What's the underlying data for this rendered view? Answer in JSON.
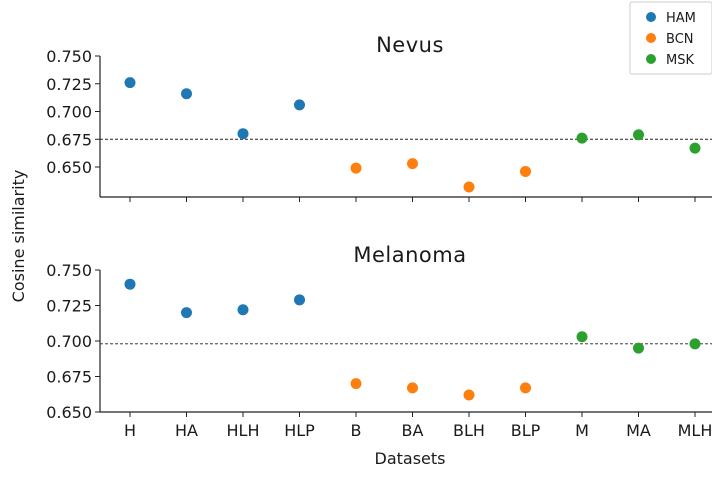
{
  "chart_data": {
    "type": "scatter",
    "xlabel": "Datasets",
    "ylabel": "Cosine similarity",
    "categories": [
      "H",
      "HA",
      "HLH",
      "HLP",
      "B",
      "BA",
      "BLH",
      "BLP",
      "M",
      "MA",
      "MLH"
    ],
    "legend": {
      "position": "top-right",
      "entries": [
        {
          "name": "HAM",
          "color": "#1f77b4"
        },
        {
          "name": "BCN",
          "color": "#ff7f0e"
        },
        {
          "name": "MSK",
          "color": "#2ca02c"
        }
      ]
    },
    "panels": [
      {
        "title": "Nevus",
        "ylim": [
          0.63,
          0.75
        ],
        "yticks": [
          0.65,
          0.675,
          0.7,
          0.725,
          0.75
        ],
        "ytick_labels": [
          "0.650",
          "0.675",
          "0.700",
          "0.725",
          "0.750"
        ],
        "reference_line": 0.675,
        "series": [
          {
            "name": "HAM",
            "color": "#1f77b4",
            "categories": [
              "H",
              "HA",
              "HLH",
              "HLP"
            ],
            "values": [
              0.726,
              0.716,
              0.68,
              0.706
            ]
          },
          {
            "name": "BCN",
            "color": "#ff7f0e",
            "categories": [
              "B",
              "BA",
              "BLH",
              "BLP"
            ],
            "values": [
              0.649,
              0.653,
              0.632,
              0.646
            ]
          },
          {
            "name": "MSK",
            "color": "#2ca02c",
            "categories": [
              "M",
              "MA",
              "MLH"
            ],
            "values": [
              0.676,
              0.679,
              0.667
            ]
          }
        ]
      },
      {
        "title": "Melanoma",
        "ylim": [
          0.65,
          0.75
        ],
        "yticks": [
          0.65,
          0.675,
          0.7,
          0.725,
          0.75
        ],
        "ytick_labels": [
          "0.650",
          "0.675",
          "0.700",
          "0.725",
          "0.750"
        ],
        "reference_line": 0.698,
        "series": [
          {
            "name": "HAM",
            "color": "#1f77b4",
            "categories": [
              "H",
              "HA",
              "HLH",
              "HLP"
            ],
            "values": [
              0.74,
              0.72,
              0.722,
              0.729
            ]
          },
          {
            "name": "BCN",
            "color": "#ff7f0e",
            "categories": [
              "B",
              "BA",
              "BLH",
              "BLP"
            ],
            "values": [
              0.67,
              0.667,
              0.662,
              0.667
            ]
          },
          {
            "name": "MSK",
            "color": "#2ca02c",
            "categories": [
              "M",
              "MA",
              "MLH"
            ],
            "values": [
              0.703,
              0.695,
              0.698
            ]
          }
        ]
      }
    ]
  }
}
